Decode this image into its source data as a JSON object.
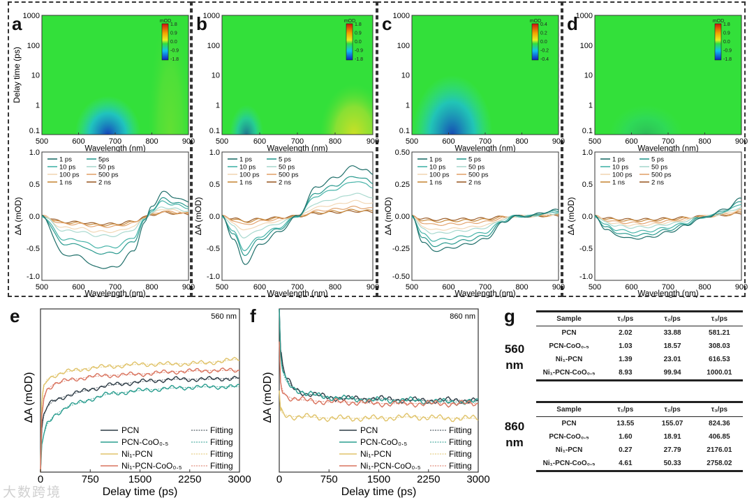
{
  "panel_letters": [
    "a",
    "b",
    "c",
    "d",
    "e",
    "f",
    "g"
  ],
  "watermark": "大数跨境",
  "chart_data": {
    "tas_panels": [
      {
        "id": "a",
        "heatmap": {
          "type": "heatmap",
          "xlabel": "Wavelength (nm)",
          "ylabel": "Delay time (ps)",
          "xlim": [
            500,
            900
          ],
          "ylim": [
            0.1,
            1000
          ],
          "yscale": "log",
          "xticks": [
            "500",
            "600",
            "700",
            "800",
            "900"
          ],
          "yticks": [
            "0.1",
            "1",
            "10",
            "100",
            "1000"
          ],
          "colorbar": {
            "title": "mOD",
            "ticks": [
              "1.8",
              "0.9",
              "0.0",
              "-0.9",
              "-1.8"
            ]
          },
          "features": [
            {
              "kind": "bleach",
              "center_nm": 680,
              "halfwidth_nm": 90,
              "max_delay_ps": 2,
              "intensity": 0.9
            },
            {
              "kind": "absorption",
              "center_nm": 850,
              "halfwidth_nm": 60,
              "max_delay_ps": 1000,
              "intensity": 0.25
            }
          ]
        },
        "spectra": {
          "type": "line",
          "xlabel": "Wavelength (nm)",
          "ylabel": "ΔA (mOD)",
          "xlim": [
            500,
            900
          ],
          "ylim": [
            -1.0,
            1.0
          ],
          "xticks": [
            "500",
            "600",
            "700",
            "800",
            "900"
          ],
          "yticks": [
            "1.0",
            "0.5",
            "0.0",
            "-0.5",
            "-1.0"
          ],
          "wavelengths": [
            500,
            560,
            600,
            650,
            700,
            750,
            780,
            800,
            830,
            860,
            900
          ],
          "profile_1ps": [
            0,
            -0.6,
            -0.62,
            -0.8,
            -0.8,
            -0.55,
            -0.1,
            0.15,
            0.38,
            0.3,
            0.22
          ],
          "series": [
            {
              "name": "1 ps",
              "scale": 1.0
            },
            {
              "name": "5ps",
              "scale": 0.72
            },
            {
              "name": "10 ps",
              "scale": 0.6
            },
            {
              "name": "50 ps",
              "scale": 0.38
            },
            {
              "name": "100 ps",
              "scale": 0.3
            },
            {
              "name": "500 ps",
              "scale": 0.2
            },
            {
              "name": "1 ns",
              "scale": 0.17
            },
            {
              "name": "2 ns",
              "scale": 0.15
            }
          ]
        }
      },
      {
        "id": "b",
        "heatmap": {
          "type": "heatmap",
          "xlabel": "Wavelength (nm)",
          "ylabel": "",
          "xlim": [
            500,
            900
          ],
          "ylim": [
            0.1,
            1000
          ],
          "yscale": "log",
          "xticks": [
            "500",
            "600",
            "700",
            "800",
            "900"
          ],
          "yticks": [
            "0.1",
            "1",
            "10",
            "100",
            "1000"
          ],
          "colorbar": {
            "title": "mOD",
            "ticks": [
              "1.8",
              "0.9",
              "0.0",
              "-0.9",
              "-1.8"
            ]
          },
          "features": [
            {
              "kind": "bleach",
              "center_nm": 565,
              "halfwidth_nm": 45,
              "max_delay_ps": 1,
              "intensity": 0.6
            },
            {
              "kind": "absorption",
              "center_nm": 850,
              "halfwidth_nm": 90,
              "max_delay_ps": 5,
              "intensity": 0.8
            }
          ]
        },
        "spectra": {
          "type": "line",
          "xlabel": "Wavelength (nm)",
          "ylabel": "ΔA (mOD)",
          "xlim": [
            500,
            900
          ],
          "ylim": [
            -1.0,
            1.0
          ],
          "xticks": [
            "500",
            "600",
            "700",
            "800",
            "900"
          ],
          "yticks": [
            "1.0",
            "0.5",
            "0.0",
            "-0.5",
            "-1.0"
          ],
          "wavelengths": [
            500,
            530,
            560,
            600,
            650,
            700,
            750,
            800,
            850,
            880,
            900
          ],
          "profile_1ps": [
            0,
            -0.35,
            -0.75,
            -0.45,
            -0.25,
            0.0,
            0.45,
            0.6,
            0.78,
            0.72,
            0.65
          ],
          "series": [
            {
              "name": "1 ps",
              "scale": 1.0
            },
            {
              "name": "5 ps",
              "scale": 0.8
            },
            {
              "name": "10 ps",
              "scale": 0.7
            },
            {
              "name": "50 ps",
              "scale": 0.45
            },
            {
              "name": "100 ps",
              "scale": 0.3
            },
            {
              "name": "500 ps",
              "scale": 0.18
            },
            {
              "name": "1 ns",
              "scale": 0.12
            },
            {
              "name": "2 ns",
              "scale": 0.1
            }
          ]
        }
      },
      {
        "id": "c",
        "heatmap": {
          "type": "heatmap",
          "xlabel": "Wavelength (nm)",
          "ylabel": "",
          "xlim": [
            500,
            900
          ],
          "ylim": [
            0.1,
            1000
          ],
          "yscale": "log",
          "xticks": [
            "500",
            "600",
            "700",
            "800",
            "900"
          ],
          "yticks": [
            "0.1",
            "1",
            "10",
            "100",
            "1000"
          ],
          "colorbar": {
            "title": "mOD",
            "ticks": [
              "0.4",
              "0.2",
              "0.0",
              "-0.2",
              "-0.4"
            ]
          },
          "features": [
            {
              "kind": "bleach",
              "center_nm": 610,
              "halfwidth_nm": 110,
              "max_delay_ps": 10,
              "intensity": 0.85
            }
          ]
        },
        "spectra": {
          "type": "line",
          "xlabel": "Wavelength (nm)",
          "ylabel": "ΔA (mOD)",
          "xlim": [
            500,
            900
          ],
          "ylim": [
            -0.5,
            0.5
          ],
          "xticks": [
            "500",
            "600",
            "700",
            "800",
            "900"
          ],
          "yticks": [
            "0.50",
            "0.25",
            "0.00",
            "-0.25",
            "-0.50"
          ],
          "wavelengths": [
            500,
            530,
            560,
            600,
            650,
            700,
            750,
            780,
            820,
            860,
            900
          ],
          "profile_1ps": [
            0,
            -0.2,
            -0.27,
            -0.25,
            -0.22,
            -0.18,
            -0.05,
            0.0,
            0.0,
            0.03,
            0.05
          ],
          "series": [
            {
              "name": "1 ps",
              "scale": 1.0
            },
            {
              "name": "5 ps",
              "scale": 0.85
            },
            {
              "name": "10 ps",
              "scale": 0.7
            },
            {
              "name": "50 ps",
              "scale": 0.5
            },
            {
              "name": "100 ps",
              "scale": 0.4
            },
            {
              "name": "500 ps",
              "scale": 0.25
            },
            {
              "name": "1 ns",
              "scale": 0.15
            },
            {
              "name": "2 ns",
              "scale": 0.1
            }
          ]
        }
      },
      {
        "id": "d",
        "heatmap": {
          "type": "heatmap",
          "xlabel": "Wavelength (nm)",
          "ylabel": "",
          "xlim": [
            500,
            900
          ],
          "ylim": [
            0.1,
            1000
          ],
          "yscale": "log",
          "xticks": [
            "500",
            "600",
            "700",
            "800",
            "900"
          ],
          "yticks": [
            "0.1",
            "1",
            "10",
            "100",
            "1000"
          ],
          "colorbar": {
            "title": "mOD",
            "ticks": [
              "1.8",
              "0.9",
              "0.0",
              "-0.9",
              "-1.8"
            ]
          },
          "features": [
            {
              "kind": "bleach",
              "center_nm": 640,
              "halfwidth_nm": 100,
              "max_delay_ps": 1,
              "intensity": 0.2
            }
          ]
        },
        "spectra": {
          "type": "line",
          "xlabel": "Wavelength (nm)",
          "ylabel": "ΔA (mOD)",
          "xlim": [
            500,
            900
          ],
          "ylim": [
            -1.0,
            1.0
          ],
          "xticks": [
            "500",
            "600",
            "700",
            "800",
            "900"
          ],
          "yticks": [
            "1.0",
            "0.5",
            "0.0",
            "-0.5",
            "-1.0"
          ],
          "wavelengths": [
            500,
            530,
            560,
            600,
            650,
            700,
            750,
            780,
            810,
            860,
            900
          ],
          "profile_1ps": [
            0,
            -0.2,
            -0.3,
            -0.35,
            -0.33,
            -0.25,
            -0.15,
            -0.05,
            0.0,
            0.12,
            0.28
          ],
          "series": [
            {
              "name": "1 ps",
              "scale": 1.0
            },
            {
              "name": "5 ps",
              "scale": 0.85
            },
            {
              "name": "10 ps",
              "scale": 0.7
            },
            {
              "name": "50 ps",
              "scale": 0.5
            },
            {
              "name": "100 ps",
              "scale": 0.4
            },
            {
              "name": "500 ps",
              "scale": 0.3
            },
            {
              "name": "1 ns",
              "scale": 0.2
            },
            {
              "name": "2 ns",
              "scale": 0.15
            }
          ]
        }
      }
    ],
    "spectra_colors": [
      "#1f6f6a",
      "#2a9a8f",
      "#45b3a8",
      "#a9d9cf",
      "#f2d7b5",
      "#e2a36d",
      "#c88a3c",
      "#9c5e2a"
    ],
    "kinetics": [
      {
        "id": "e",
        "type": "line",
        "annotation": "560 nm",
        "xlabel": "Delay time (ps)",
        "ylabel": "ΔA (mOD)",
        "xlim": [
          0,
          3000
        ],
        "ylim": [
          0,
          1.3
        ],
        "xticks": [
          "0",
          "750",
          "1500",
          "2250",
          "3000"
        ],
        "x": [
          0,
          20,
          50,
          100,
          200,
          400,
          750,
          1000,
          1500,
          2000,
          2500,
          3000
        ],
        "series": [
          {
            "name": "PCN",
            "color": "#2d3b45",
            "values": [
              0,
              0.35,
              0.45,
              0.52,
              0.57,
              0.61,
              0.66,
              0.69,
              0.72,
              0.74,
              0.74,
              0.75
            ]
          },
          {
            "name": "PCN-CoO₀.₅",
            "color": "#2a9d8f",
            "values": [
              0,
              0.22,
              0.3,
              0.38,
              0.45,
              0.52,
              0.58,
              0.62,
              0.65,
              0.67,
              0.68,
              0.68
            ]
          },
          {
            "name": "Ni₁-PCN",
            "color": "#e0c36a",
            "values": [
              0,
              0.55,
              0.68,
              0.74,
              0.77,
              0.8,
              0.83,
              0.84,
              0.86,
              0.86,
              0.87,
              0.9
            ]
          },
          {
            "name": "Ni₁-PCN-CoO₀.₅",
            "color": "#d9735e",
            "values": [
              0,
              0.45,
              0.6,
              0.66,
              0.7,
              0.73,
              0.76,
              0.77,
              0.78,
              0.8,
              0.81,
              0.81
            ]
          }
        ],
        "fit_label": "Fitting"
      },
      {
        "id": "f",
        "type": "line",
        "annotation": "860 nm",
        "xlabel": "Delay time (ps)",
        "ylabel": "ΔA (mOD)",
        "xlim": [
          0,
          3000
        ],
        "ylim": [
          0,
          1.0
        ],
        "xticks": [
          "0",
          "750",
          "1500",
          "2250",
          "3000"
        ],
        "x": [
          0,
          20,
          50,
          100,
          200,
          400,
          750,
          1000,
          1500,
          2000,
          2500,
          3000
        ],
        "series": [
          {
            "name": "PCN",
            "color": "#2d3b45",
            "values": [
              1.0,
              0.75,
              0.65,
              0.58,
              0.52,
              0.48,
              0.46,
              0.45,
              0.45,
              0.44,
              0.44,
              0.44
            ]
          },
          {
            "name": "PCN-CoO₀.₅",
            "color": "#2a9d8f",
            "values": [
              1.0,
              0.72,
              0.62,
              0.56,
              0.52,
              0.48,
              0.46,
              0.45,
              0.44,
              0.44,
              0.43,
              0.43
            ]
          },
          {
            "name": "Ni₁-PCN",
            "color": "#e0c36a",
            "values": [
              0.5,
              0.38,
              0.36,
              0.35,
              0.34,
              0.34,
              0.33,
              0.33,
              0.33,
              0.34,
              0.33,
              0.33
            ]
          },
          {
            "name": "Ni₁-PCN-CoO₀.₅",
            "color": "#d9735e",
            "values": [
              0.8,
              0.55,
              0.5,
              0.47,
              0.45,
              0.44,
              0.43,
              0.43,
              0.42,
              0.42,
              0.42,
              0.42
            ]
          }
        ],
        "fit_label": "Fitting"
      }
    ],
    "table_g": {
      "type": "table",
      "tables": [
        {
          "wavelength": [
            "560",
            "nm"
          ],
          "headers": [
            "Sample",
            "τ₁/ps",
            "τ₂/ps",
            "τ₃/ps"
          ],
          "rows": [
            [
              "PCN",
              "2.02",
              "33.88",
              "581.21"
            ],
            [
              "PCN-CoO₀.₅",
              "1.03",
              "18.57",
              "308.03"
            ],
            [
              "Ni₁-PCN",
              "1.39",
              "23.01",
              "616.53"
            ],
            [
              "Ni₁-PCN-CoO₀.₅",
              "8.93",
              "99.94",
              "1000.01"
            ]
          ]
        },
        {
          "wavelength": [
            "860",
            "nm"
          ],
          "headers": [
            "Sample",
            "τ₁/ps",
            "τ₂/ps",
            "τ₃/ps"
          ],
          "rows": [
            [
              "PCN",
              "13.55",
              "155.07",
              "824.36"
            ],
            [
              "PCN-CoO₀.₅",
              "1.60",
              "18.91",
              "406.85"
            ],
            [
              "Ni₁-PCN",
              "0.27",
              "27.79",
              "2176.01"
            ],
            [
              "Ni₁-PCN-CoO₀.₅",
              "4.61",
              "50.33",
              "2758.02"
            ]
          ]
        }
      ]
    }
  }
}
